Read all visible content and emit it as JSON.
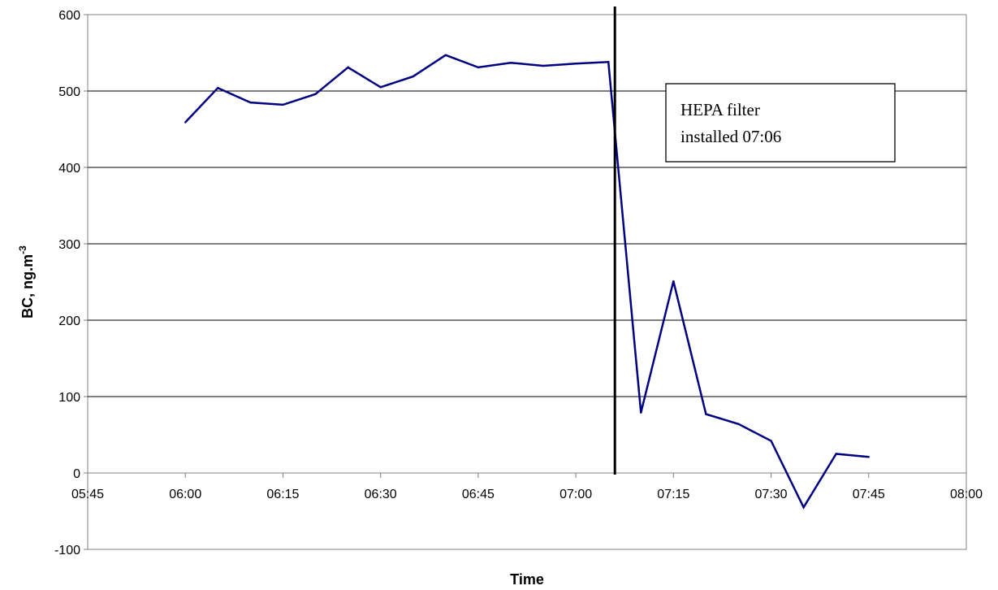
{
  "chart_data": {
    "type": "line",
    "xlabel": "Time",
    "ylabel_main": "BC, ng.m",
    "ylabel_sup": "-3",
    "ylim": [
      -100,
      600
    ],
    "yticks": [
      "600",
      "500",
      "400",
      "300",
      "200",
      "100",
      "0",
      "-100"
    ],
    "xlim": [
      "05:45",
      "08:00"
    ],
    "xticks": [
      "05:45",
      "06:00",
      "06:15",
      "06:30",
      "06:45",
      "07:00",
      "07:15",
      "07:30",
      "07:45",
      "08:00"
    ],
    "grid": "horizontal",
    "series": [
      {
        "color": "#000080",
        "x": [
          "06:00",
          "06:05",
          "06:10",
          "06:15",
          "06:20",
          "06:25",
          "06:30",
          "06:35",
          "06:40",
          "06:45",
          "06:50",
          "06:55",
          "07:00",
          "07:05",
          "07:10",
          "07:15",
          "07:20",
          "07:25",
          "07:30",
          "07:35",
          "07:40",
          "07:45"
        ],
        "y": [
          459,
          504,
          485,
          482,
          496,
          531,
          505,
          519,
          547,
          531,
          537,
          533,
          536,
          538,
          79,
          251,
          77,
          64,
          42,
          -45,
          25,
          21
        ]
      }
    ],
    "vline": {
      "x": "07:06"
    },
    "annotation": {
      "line1": "HEPA filter",
      "line2": "installed 07:06"
    }
  }
}
